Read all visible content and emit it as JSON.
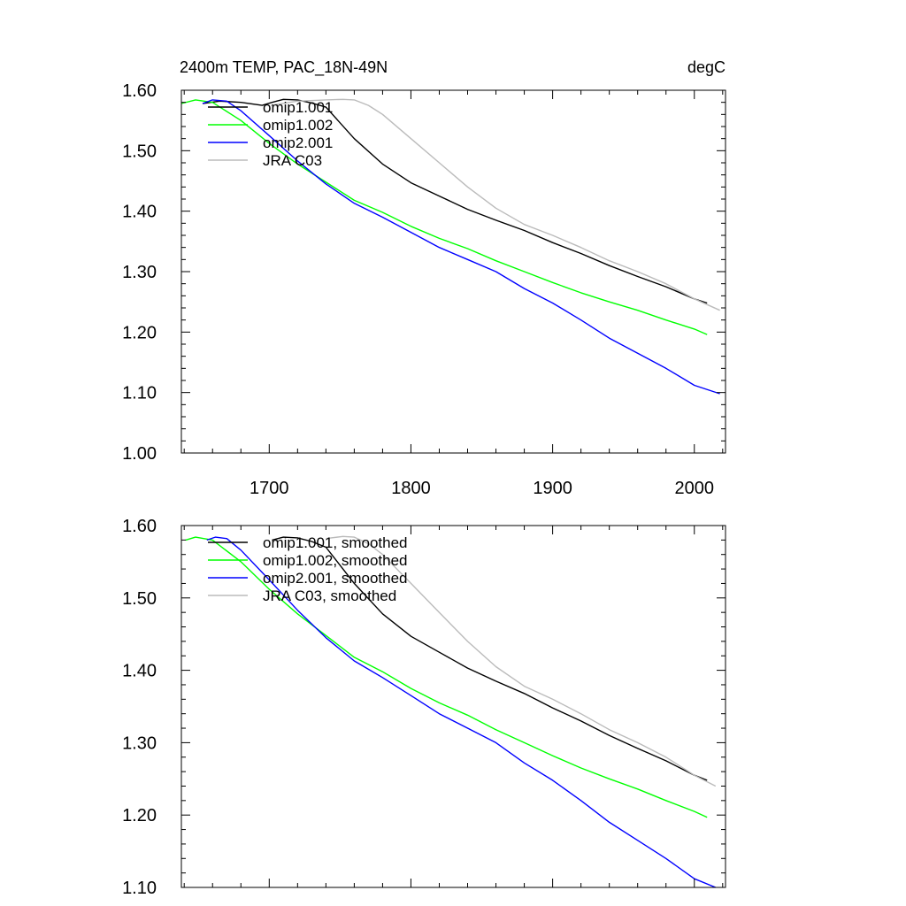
{
  "chart_data": [
    {
      "type": "line",
      "title": "2400m TEMP, PAC_18N-49N",
      "units": "degC",
      "xlim": [
        1638,
        2022
      ],
      "ylim": [
        1.0,
        1.6
      ],
      "xticks": [
        1700,
        1800,
        1900,
        2000
      ],
      "xtick_labels": [
        "1700",
        "1800",
        "1900",
        "2000"
      ],
      "yticks": [
        1.0,
        1.1,
        1.2,
        1.3,
        1.4,
        1.5,
        1.6
      ],
      "ytick_labels": [
        "1.00",
        "1.10",
        "1.20",
        "1.30",
        "1.40",
        "1.50",
        "1.60"
      ],
      "legend_position": "top-left",
      "series": [
        {
          "name": "omip1.001",
          "color": "#000000",
          "x": [
            1653,
            1665,
            1680,
            1695,
            1702,
            1710,
            1720,
            1730,
            1740,
            1760,
            1780,
            1800,
            1820,
            1840,
            1860,
            1880,
            1900,
            1920,
            1940,
            1960,
            1980,
            2000,
            2009
          ],
          "y": [
            1.578,
            1.582,
            1.58,
            1.575,
            1.58,
            1.585,
            1.584,
            1.579,
            1.572,
            1.52,
            1.478,
            1.447,
            1.425,
            1.403,
            1.385,
            1.368,
            1.348,
            1.33,
            1.31,
            1.292,
            1.275,
            1.255,
            1.248
          ]
        },
        {
          "name": "omip1.002",
          "color": "#00ff00",
          "x": [
            1638,
            1648,
            1660,
            1680,
            1700,
            1720,
            1740,
            1760,
            1780,
            1800,
            1820,
            1840,
            1860,
            1880,
            1900,
            1920,
            1940,
            1960,
            1980,
            2000,
            2009
          ],
          "y": [
            1.578,
            1.584,
            1.58,
            1.55,
            1.512,
            1.478,
            1.448,
            1.418,
            1.398,
            1.375,
            1.355,
            1.338,
            1.318,
            1.3,
            1.282,
            1.265,
            1.25,
            1.236,
            1.22,
            1.205,
            1.196
          ]
        },
        {
          "name": "omip2.001",
          "color": "#0000ff",
          "x": [
            1653,
            1660,
            1670,
            1680,
            1700,
            1720,
            1740,
            1760,
            1780,
            1800,
            1820,
            1840,
            1860,
            1880,
            1900,
            1920,
            1940,
            1960,
            1980,
            2000,
            2018
          ],
          "y": [
            1.578,
            1.584,
            1.582,
            1.566,
            1.525,
            1.483,
            1.445,
            1.413,
            1.39,
            1.365,
            1.34,
            1.32,
            1.3,
            1.272,
            1.248,
            1.22,
            1.19,
            1.165,
            1.14,
            1.112,
            1.098
          ]
        },
        {
          "name": "JRA C03",
          "color": "#bbbbbb",
          "x": [
            1701,
            1720,
            1740,
            1752,
            1760,
            1770,
            1780,
            1800,
            1820,
            1840,
            1860,
            1880,
            1900,
            1920,
            1940,
            1960,
            1980,
            2000,
            2018
          ],
          "y": [
            1.575,
            1.582,
            1.584,
            1.585,
            1.584,
            1.575,
            1.56,
            1.52,
            1.48,
            1.44,
            1.405,
            1.378,
            1.36,
            1.34,
            1.318,
            1.3,
            1.28,
            1.255,
            1.236
          ]
        }
      ]
    },
    {
      "type": "line",
      "xlim": [
        1638,
        2022
      ],
      "ylim": [
        1.1,
        1.6
      ],
      "xticks": [
        1700,
        1800,
        1900,
        2000
      ],
      "yticks": [
        1.1,
        1.2,
        1.3,
        1.4,
        1.5,
        1.6
      ],
      "ytick_labels": [
        "1.10",
        "1.20",
        "1.30",
        "1.40",
        "1.50",
        "1.60"
      ],
      "legend_position": "top-left",
      "series": [
        {
          "name": "omip1.001, smoothed",
          "color": "#000000",
          "x": [
            1702,
            1710,
            1720,
            1730,
            1740,
            1760,
            1780,
            1800,
            1820,
            1840,
            1860,
            1880,
            1900,
            1920,
            1940,
            1960,
            1980,
            2000,
            2009
          ],
          "y": [
            1.58,
            1.584,
            1.583,
            1.578,
            1.57,
            1.52,
            1.478,
            1.447,
            1.425,
            1.403,
            1.385,
            1.368,
            1.348,
            1.33,
            1.31,
            1.292,
            1.275,
            1.255,
            1.248
          ]
        },
        {
          "name": "omip1.002, smoothed",
          "color": "#00ff00",
          "x": [
            1641,
            1648,
            1660,
            1680,
            1700,
            1720,
            1740,
            1760,
            1780,
            1800,
            1820,
            1840,
            1860,
            1880,
            1900,
            1920,
            1940,
            1960,
            1980,
            2000,
            2009
          ],
          "y": [
            1.58,
            1.584,
            1.58,
            1.55,
            1.512,
            1.478,
            1.448,
            1.418,
            1.398,
            1.375,
            1.355,
            1.338,
            1.318,
            1.3,
            1.282,
            1.265,
            1.25,
            1.236,
            1.22,
            1.205,
            1.197
          ]
        },
        {
          "name": "omip2.001, smoothed",
          "color": "#0000ff",
          "x": [
            1656,
            1662,
            1670,
            1680,
            1700,
            1720,
            1740,
            1760,
            1780,
            1800,
            1820,
            1840,
            1860,
            1880,
            1900,
            1920,
            1940,
            1960,
            1980,
            2000,
            2015
          ],
          "y": [
            1.58,
            1.584,
            1.582,
            1.566,
            1.525,
            1.483,
            1.445,
            1.413,
            1.39,
            1.365,
            1.34,
            1.32,
            1.3,
            1.272,
            1.248,
            1.22,
            1.19,
            1.165,
            1.14,
            1.112,
            1.1
          ]
        },
        {
          "name": "JRA C03, smoothed",
          "color": "#bbbbbb",
          "x": [
            1740,
            1752,
            1760,
            1770,
            1780,
            1800,
            1820,
            1840,
            1860,
            1880,
            1900,
            1920,
            1940,
            1960,
            1980,
            2000,
            2015
          ],
          "y": [
            1.582,
            1.585,
            1.584,
            1.575,
            1.56,
            1.52,
            1.48,
            1.44,
            1.405,
            1.378,
            1.36,
            1.34,
            1.318,
            1.3,
            1.28,
            1.255,
            1.24
          ]
        }
      ]
    }
  ]
}
